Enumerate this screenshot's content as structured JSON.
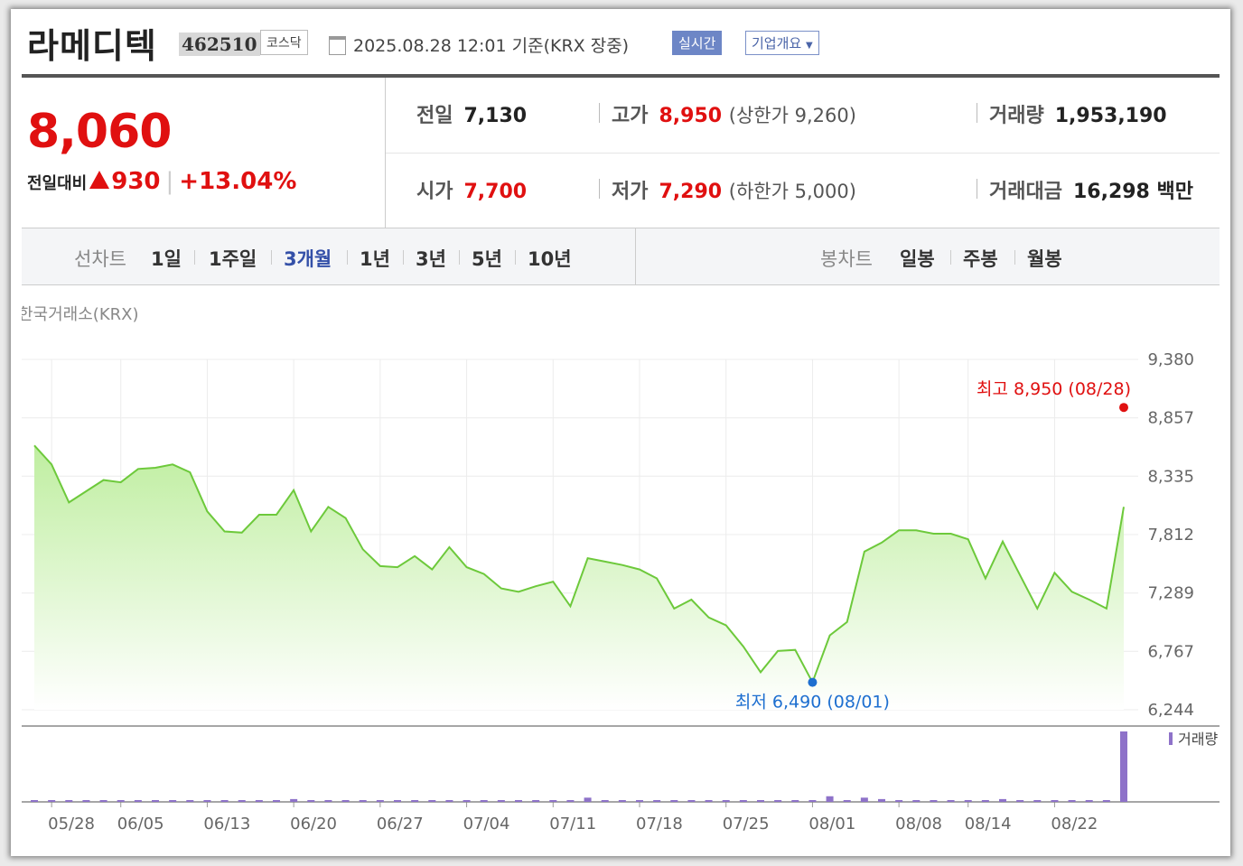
{
  "header": {
    "name": "라메디텍",
    "code": "462510",
    "market": "코스닥",
    "timestamp": "2025.08.28 12:01 기준(KRX 장중)",
    "realtime_button": "실시간",
    "company_button": "기업개요"
  },
  "summary": {
    "price": "8,060",
    "change_label": "전일대비",
    "change_value": "930",
    "change_pct": "+13.04%",
    "prev_label": "전일",
    "prev_value": "7,130",
    "high_label": "고가",
    "high_value": "8,950",
    "upper_limit": "(상한가 9,260)",
    "volume_label": "거래량",
    "volume_value": "1,953,190",
    "open_label": "시가",
    "open_value": "7,700",
    "low_label": "저가",
    "low_value": "7,290",
    "lower_limit": "(하한가 5,000)",
    "amount_label": "거래대금",
    "amount_value": "16,298",
    "amount_unit": "백만"
  },
  "tabs": {
    "line_chart_label": "선차트",
    "periods": [
      "1일",
      "1주일",
      "3개월",
      "1년",
      "3년",
      "5년",
      "10년"
    ],
    "active_period": "3개월",
    "candle_label": "봉차트",
    "candles": [
      "일봉",
      "주봉",
      "월봉"
    ]
  },
  "chart_data": {
    "type": "area",
    "exchange": "한국거래소(KRX)",
    "x_labels": [
      "05/28",
      "06/05",
      "06/13",
      "06/20",
      "06/27",
      "07/04",
      "07/11",
      "07/18",
      "07/25",
      "08/01",
      "08/08",
      "08/14",
      "08/22"
    ],
    "y_ticks": [
      9380,
      8857,
      8335,
      7812,
      7289,
      6767,
      6244
    ],
    "ylim": [
      6244,
      9380
    ],
    "grid": true,
    "series": [
      {
        "values": [
          8610,
          8440,
          8100,
          8200,
          8300,
          8280,
          8400,
          8410,
          8440,
          8370,
          8020,
          7840,
          7830,
          7990,
          7990,
          8210,
          7840,
          8060,
          7960,
          7680,
          7530,
          7520,
          7620,
          7500,
          7700,
          7520,
          7460,
          7330,
          7300,
          7350,
          7390,
          7170,
          7600,
          7570,
          7540,
          7500,
          7420,
          7150,
          7230,
          7070,
          7000,
          6810,
          6580,
          6770,
          6780,
          6490,
          6910,
          7030,
          7660,
          7740,
          7850,
          7850,
          7820,
          7820,
          7770,
          7420,
          7750,
          7450,
          7150,
          7470,
          7300,
          7230,
          7150,
          8060
        ]
      }
    ],
    "high_annotation": {
      "label": "최고 8,950 (08/28)",
      "value": 8950
    },
    "low_annotation": {
      "label": "최저 6,490 (08/01)",
      "value": 6490
    },
    "volume_legend": "거래량",
    "volume": [
      2,
      2,
      2,
      2,
      2,
      2,
      2,
      2,
      2,
      2,
      2,
      2,
      2,
      2,
      2,
      4,
      2,
      2,
      2,
      2,
      2,
      2,
      2,
      2,
      2,
      2,
      2,
      2,
      2,
      2,
      2,
      2,
      6,
      2,
      2,
      2,
      2,
      2,
      2,
      2,
      2,
      2,
      2,
      2,
      2,
      2,
      8,
      2,
      6,
      4,
      2,
      2,
      2,
      2,
      2,
      2,
      4,
      2,
      2,
      2,
      2,
      2,
      2,
      100
    ],
    "colors": {
      "line": "#6dc93b",
      "fill_top": "#bfeea0",
      "fill_bottom": "#ffffff",
      "high": "#e01010",
      "low": "#1e6fd0",
      "volume": "#8e72c9"
    }
  }
}
